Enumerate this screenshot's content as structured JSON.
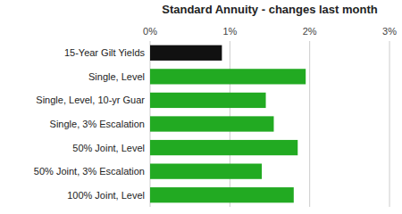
{
  "chart_data": {
    "type": "bar",
    "orientation": "horizontal",
    "title": "Standard Annuity - changes last month",
    "categories": [
      "100% Joint, Level",
      "50% Joint, 3% Escalation",
      "50% Joint, Level",
      "Single, 3% Escalation",
      "Single, Level, 10-yr Guar",
      "Single, Level",
      "15-Year Gilt Yields"
    ],
    "values": [
      1.8,
      1.4,
      1.85,
      1.55,
      1.45,
      1.95,
      0.9
    ],
    "colors": [
      "#22aa22",
      "#22aa22",
      "#22aa22",
      "#22aa22",
      "#22aa22",
      "#22aa22",
      "#111111"
    ],
    "xlim": [
      0,
      3
    ],
    "xticks": [
      {
        "value": 0,
        "label": "0%"
      },
      {
        "value": 1,
        "label": "1%"
      },
      {
        "value": 2,
        "label": "2%"
      },
      {
        "value": 3,
        "label": "3%"
      }
    ],
    "grid": true
  }
}
